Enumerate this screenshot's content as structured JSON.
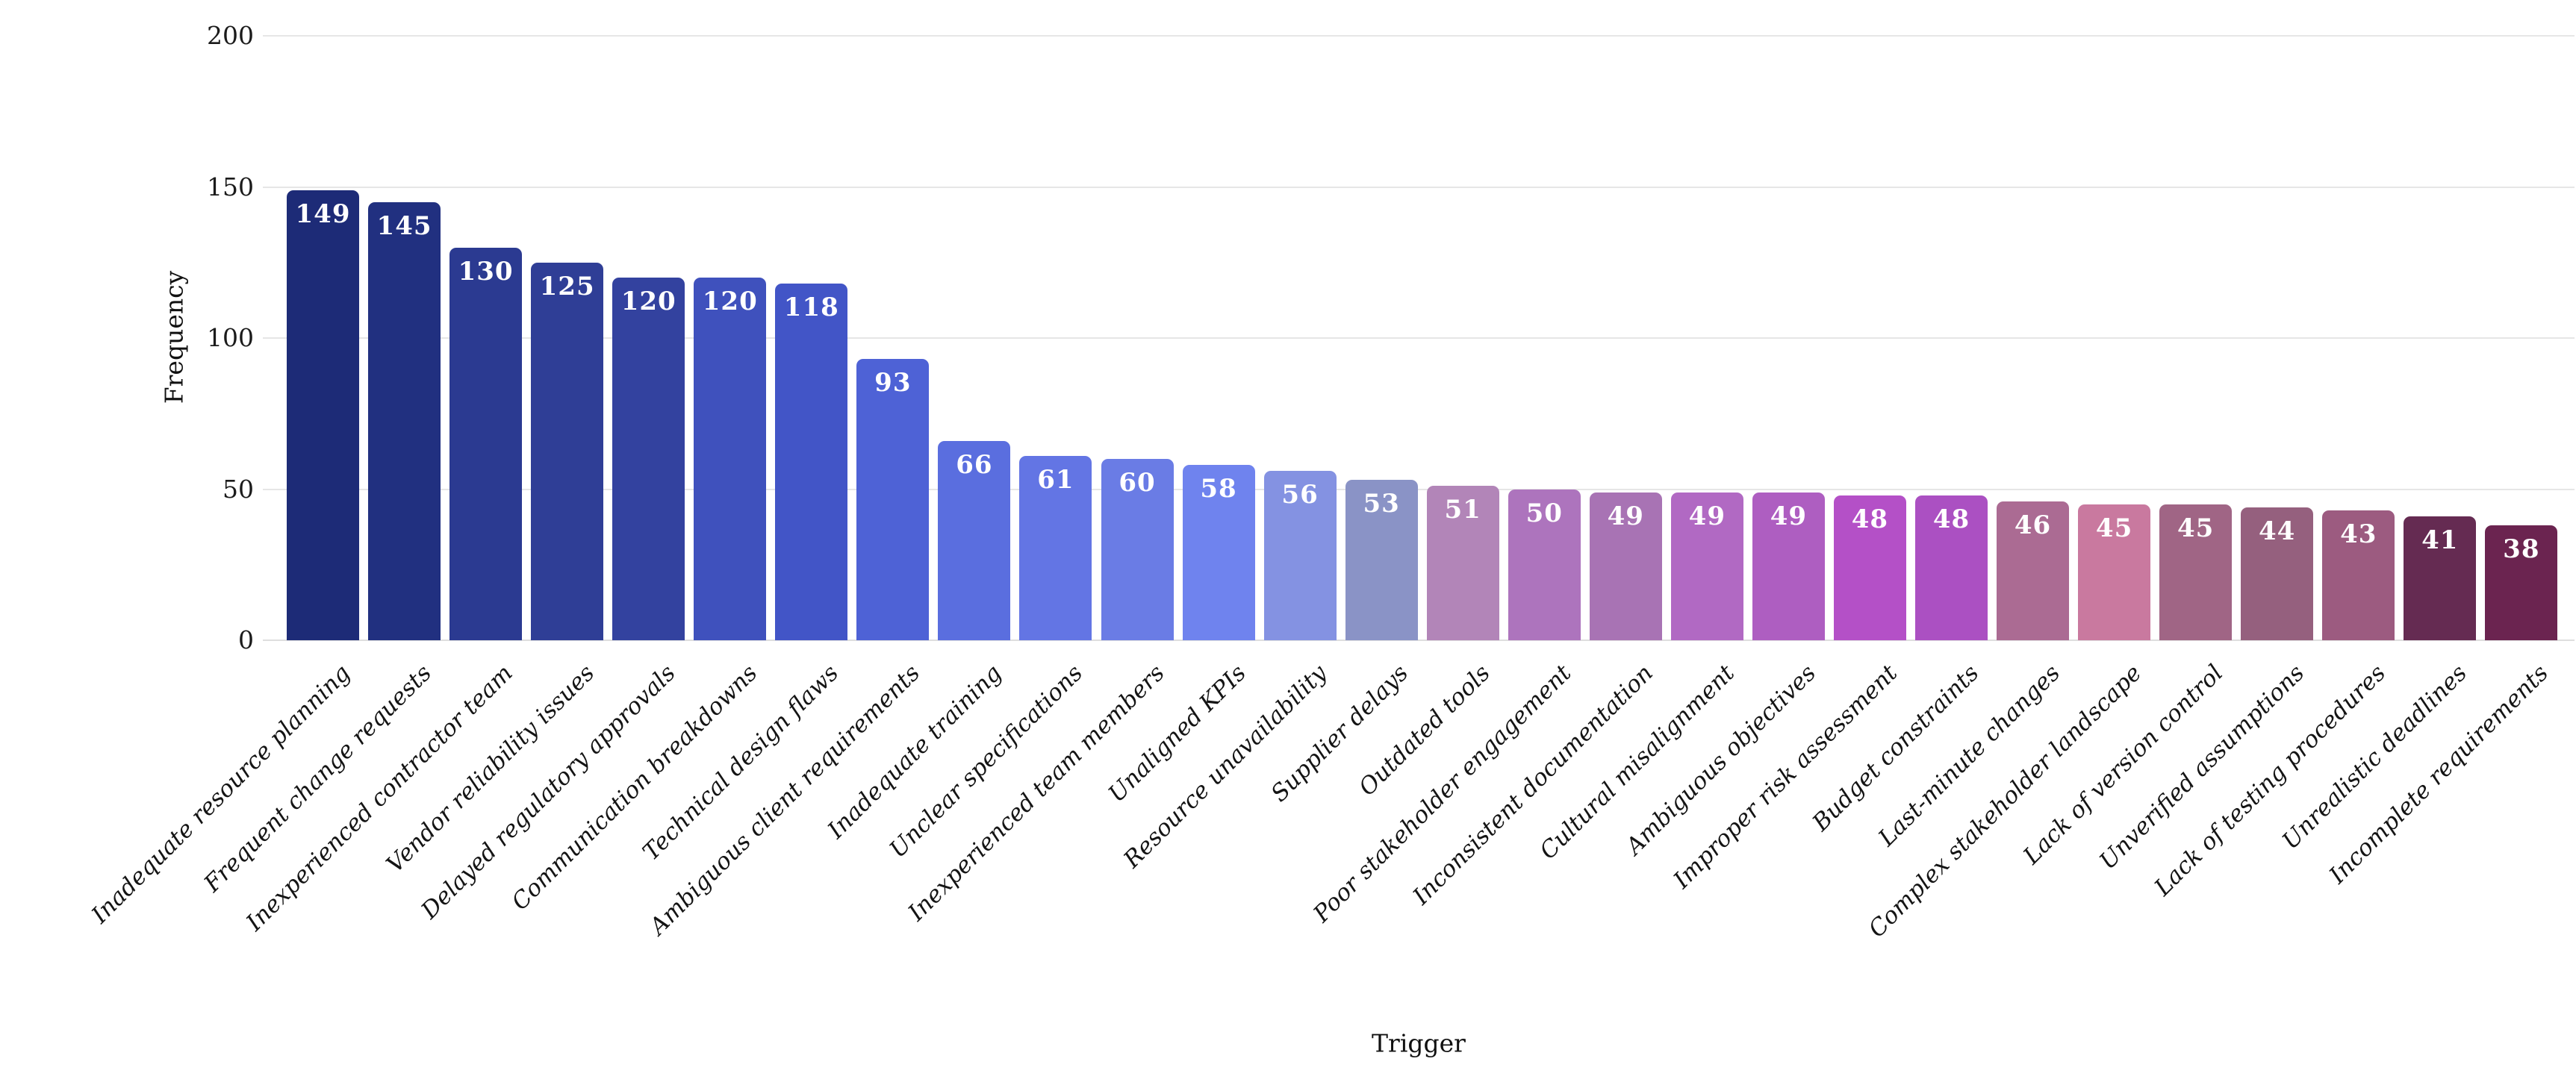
{
  "chart_data": {
    "type": "bar",
    "title": "",
    "xlabel": "Trigger",
    "ylabel": "Frequency",
    "ylim": [
      0,
      200
    ],
    "yticks": [
      0,
      50,
      100,
      150,
      200
    ],
    "grid": "horizontal",
    "legend": "none",
    "bar_value_labels": "inside-top, white",
    "categories": [
      "Inadequate resource planning",
      "Frequent change requests",
      "Inexperienced contractor team",
      "Vendor reliability issues",
      "Delayed regulatory approvals",
      "Communication breakdowns",
      "Technical design flaws",
      "Ambiguous client requirements",
      "Inadequate training",
      "Unclear specifications",
      "Inexperienced team members",
      "Unaligned KPIs",
      "Resource unavailability",
      "Supplier delays",
      "Outdated tools",
      "Poor stakeholder engagement",
      "Inconsistent documentation",
      "Cultural misalignment",
      "Ambiguous objectives",
      "Improper risk assessment",
      "Budget constraints",
      "Last-minute changes",
      "Complex stakeholder landscape",
      "Lack of version control",
      "Unverified assumptions",
      "Lack of testing procedures",
      "Unrealistic deadlines",
      "Incomplete requirements"
    ],
    "values": [
      149,
      145,
      130,
      125,
      120,
      120,
      118,
      93,
      66,
      61,
      60,
      58,
      56,
      53,
      51,
      50,
      49,
      49,
      49,
      48,
      48,
      46,
      45,
      45,
      44,
      43,
      41,
      38
    ],
    "bar_colors": [
      "#1d2b77",
      "#213080",
      "#2b3a91",
      "#2f3e96",
      "#33429f",
      "#3f51bd",
      "#4255c7",
      "#4e62d6",
      "#5a6edf",
      "#6375e4",
      "#6a7ce5",
      "#6f83ee",
      "#8492e2",
      "#8a93c6",
      "#b285b8",
      "#ad74bd",
      "#a873b4",
      "#b169c3",
      "#ae5ec1",
      "#b450c7",
      "#ab50c2",
      "#ab6b93",
      "#c9799f",
      "#a06585",
      "#95607e",
      "#9c5b80",
      "#652b52",
      "#6b2450"
    ],
    "value_label_color": "#ffffff",
    "gridline_color": "#e6e6e6"
  }
}
